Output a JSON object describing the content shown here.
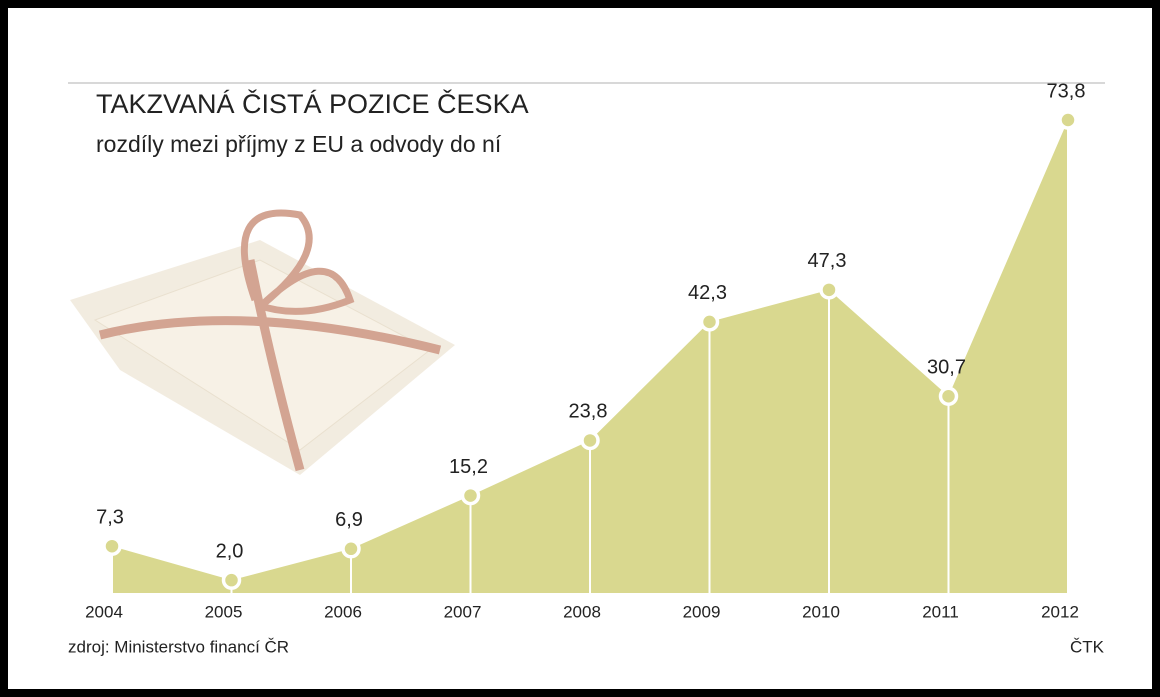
{
  "chart_data": {
    "type": "area",
    "title": "TAKZVANÁ ČISTÁ POZICE ČESKA",
    "subtitle": "rozdíly mezi příjmy z EU a odvody do ní",
    "source": "zdroj: Ministerstvo financí ČR",
    "credit": "ČTK",
    "categories": [
      "2004",
      "2005",
      "2006",
      "2007",
      "2008",
      "2009",
      "2010",
      "2011",
      "2012"
    ],
    "values": [
      7.3,
      2.0,
      6.9,
      15.2,
      23.8,
      42.3,
      47.3,
      30.7,
      73.8
    ],
    "value_labels": [
      "7,3",
      "2,0",
      "6,9",
      "15,2",
      "23,8",
      "42,3",
      "47,3",
      "30,7",
      "73,8"
    ],
    "color": "#d9d88f"
  }
}
